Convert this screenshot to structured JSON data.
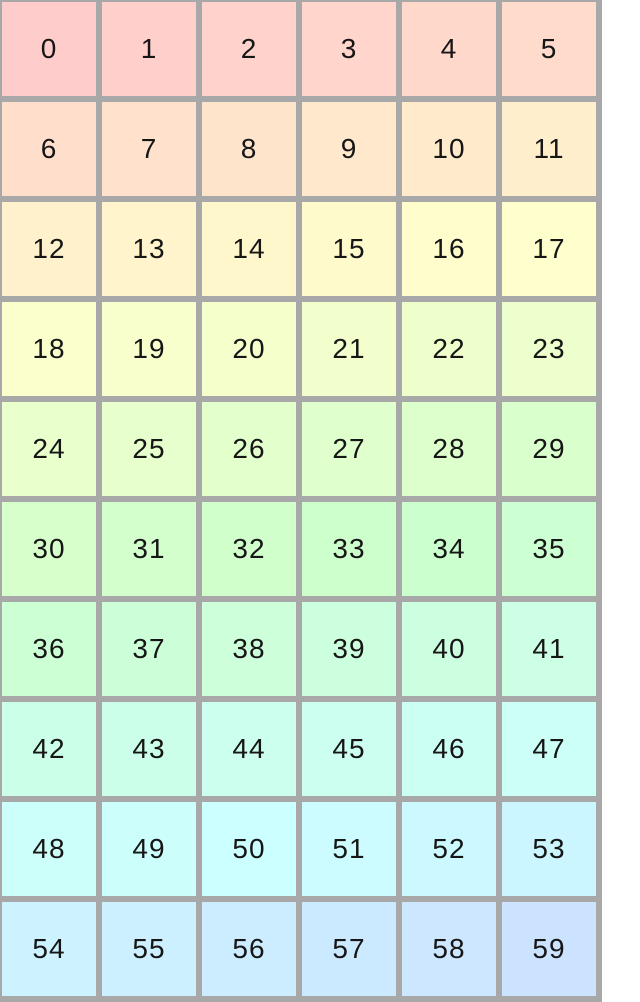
{
  "colors": {
    "page_background": "#ffffff",
    "grid_line": "#a8a8a8",
    "cell_text": "#161616"
  },
  "grid": {
    "columns": 6,
    "rows": 10,
    "cells": [
      {
        "label": "0",
        "color": "hsl(0, 100%, 90%)"
      },
      {
        "label": "1",
        "color": "hsl(3.6, 100%, 90%)"
      },
      {
        "label": "2",
        "color": "hsl(7.2, 100%, 90%)"
      },
      {
        "label": "3",
        "color": "hsl(10.8, 100%, 90%)"
      },
      {
        "label": "4",
        "color": "hsl(14.4, 100%, 90%)"
      },
      {
        "label": "5",
        "color": "hsl(18, 100%, 90%)"
      },
      {
        "label": "6",
        "color": "hsl(21.6, 100%, 90%)"
      },
      {
        "label": "7",
        "color": "hsl(25.2, 100%, 90%)"
      },
      {
        "label": "8",
        "color": "hsl(28.8, 100%, 90%)"
      },
      {
        "label": "9",
        "color": "hsl(32.4, 100%, 90%)"
      },
      {
        "label": "10",
        "color": "hsl(36, 100%, 90%)"
      },
      {
        "label": "11",
        "color": "hsl(39.6, 100%, 90%)"
      },
      {
        "label": "12",
        "color": "hsl(43.2, 100%, 90%)"
      },
      {
        "label": "13",
        "color": "hsl(46.8, 100%, 90%)"
      },
      {
        "label": "14",
        "color": "hsl(50.4, 100%, 90%)"
      },
      {
        "label": "15",
        "color": "hsl(54, 100%, 90%)"
      },
      {
        "label": "16",
        "color": "hsl(57.6, 100%, 90%)"
      },
      {
        "label": "17",
        "color": "hsl(61.2, 100%, 90%)"
      },
      {
        "label": "18",
        "color": "hsl(64.8, 100%, 90%)"
      },
      {
        "label": "19",
        "color": "hsl(68.4, 100%, 90%)"
      },
      {
        "label": "20",
        "color": "hsl(72, 100%, 90%)"
      },
      {
        "label": "21",
        "color": "hsl(75.6, 100%, 90%)"
      },
      {
        "label": "22",
        "color": "hsl(79.2, 100%, 90%)"
      },
      {
        "label": "23",
        "color": "hsl(82.8, 100%, 90%)"
      },
      {
        "label": "24",
        "color": "hsl(86.4, 100%, 90%)"
      },
      {
        "label": "25",
        "color": "hsl(90, 100%, 90%)"
      },
      {
        "label": "26",
        "color": "hsl(93.6, 100%, 90%)"
      },
      {
        "label": "27",
        "color": "hsl(97.2, 100%, 90%)"
      },
      {
        "label": "28",
        "color": "hsl(100.8, 100%, 90%)"
      },
      {
        "label": "29",
        "color": "hsl(104.4, 100%, 90%)"
      },
      {
        "label": "30",
        "color": "hsl(108, 100%, 90%)"
      },
      {
        "label": "31",
        "color": "hsl(111.6, 100%, 90%)"
      },
      {
        "label": "32",
        "color": "hsl(115.2, 100%, 90%)"
      },
      {
        "label": "33",
        "color": "hsl(118.8, 100%, 90%)"
      },
      {
        "label": "34",
        "color": "hsl(122.4, 100%, 90%)"
      },
      {
        "label": "35",
        "color": "hsl(126, 100%, 90%)"
      },
      {
        "label": "36",
        "color": "hsl(129.6, 100%, 90%)"
      },
      {
        "label": "37",
        "color": "hsl(133.2, 100%, 90%)"
      },
      {
        "label": "38",
        "color": "hsl(136.8, 100%, 90%)"
      },
      {
        "label": "39",
        "color": "hsl(140.4, 100%, 90%)"
      },
      {
        "label": "40",
        "color": "hsl(144, 100%, 90%)"
      },
      {
        "label": "41",
        "color": "hsl(147.6, 100%, 90%)"
      },
      {
        "label": "42",
        "color": "hsl(151.2, 100%, 90%)"
      },
      {
        "label": "43",
        "color": "hsl(154.8, 100%, 90%)"
      },
      {
        "label": "44",
        "color": "hsl(158.4, 100%, 90%)"
      },
      {
        "label": "45",
        "color": "hsl(162, 100%, 90%)"
      },
      {
        "label": "46",
        "color": "hsl(165.6, 100%, 90%)"
      },
      {
        "label": "47",
        "color": "hsl(169.2, 100%, 90%)"
      },
      {
        "label": "48",
        "color": "hsl(172.8, 100%, 90%)"
      },
      {
        "label": "49",
        "color": "hsl(176.4, 100%, 90%)"
      },
      {
        "label": "50",
        "color": "hsl(180, 100%, 90%)"
      },
      {
        "label": "51",
        "color": "hsl(183.6, 100%, 90%)"
      },
      {
        "label": "52",
        "color": "hsl(187.2, 100%, 90%)"
      },
      {
        "label": "53",
        "color": "hsl(190.8, 100%, 90%)"
      },
      {
        "label": "54",
        "color": "hsl(194.4, 100%, 90%)"
      },
      {
        "label": "55",
        "color": "hsl(198, 100%, 90%)"
      },
      {
        "label": "56",
        "color": "hsl(201.6, 100%, 90%)"
      },
      {
        "label": "57",
        "color": "hsl(205.2, 100%, 90%)"
      },
      {
        "label": "58",
        "color": "hsl(208.8, 100%, 90%)"
      },
      {
        "label": "59",
        "color": "hsl(212.4, 100%, 90%)"
      }
    ]
  }
}
